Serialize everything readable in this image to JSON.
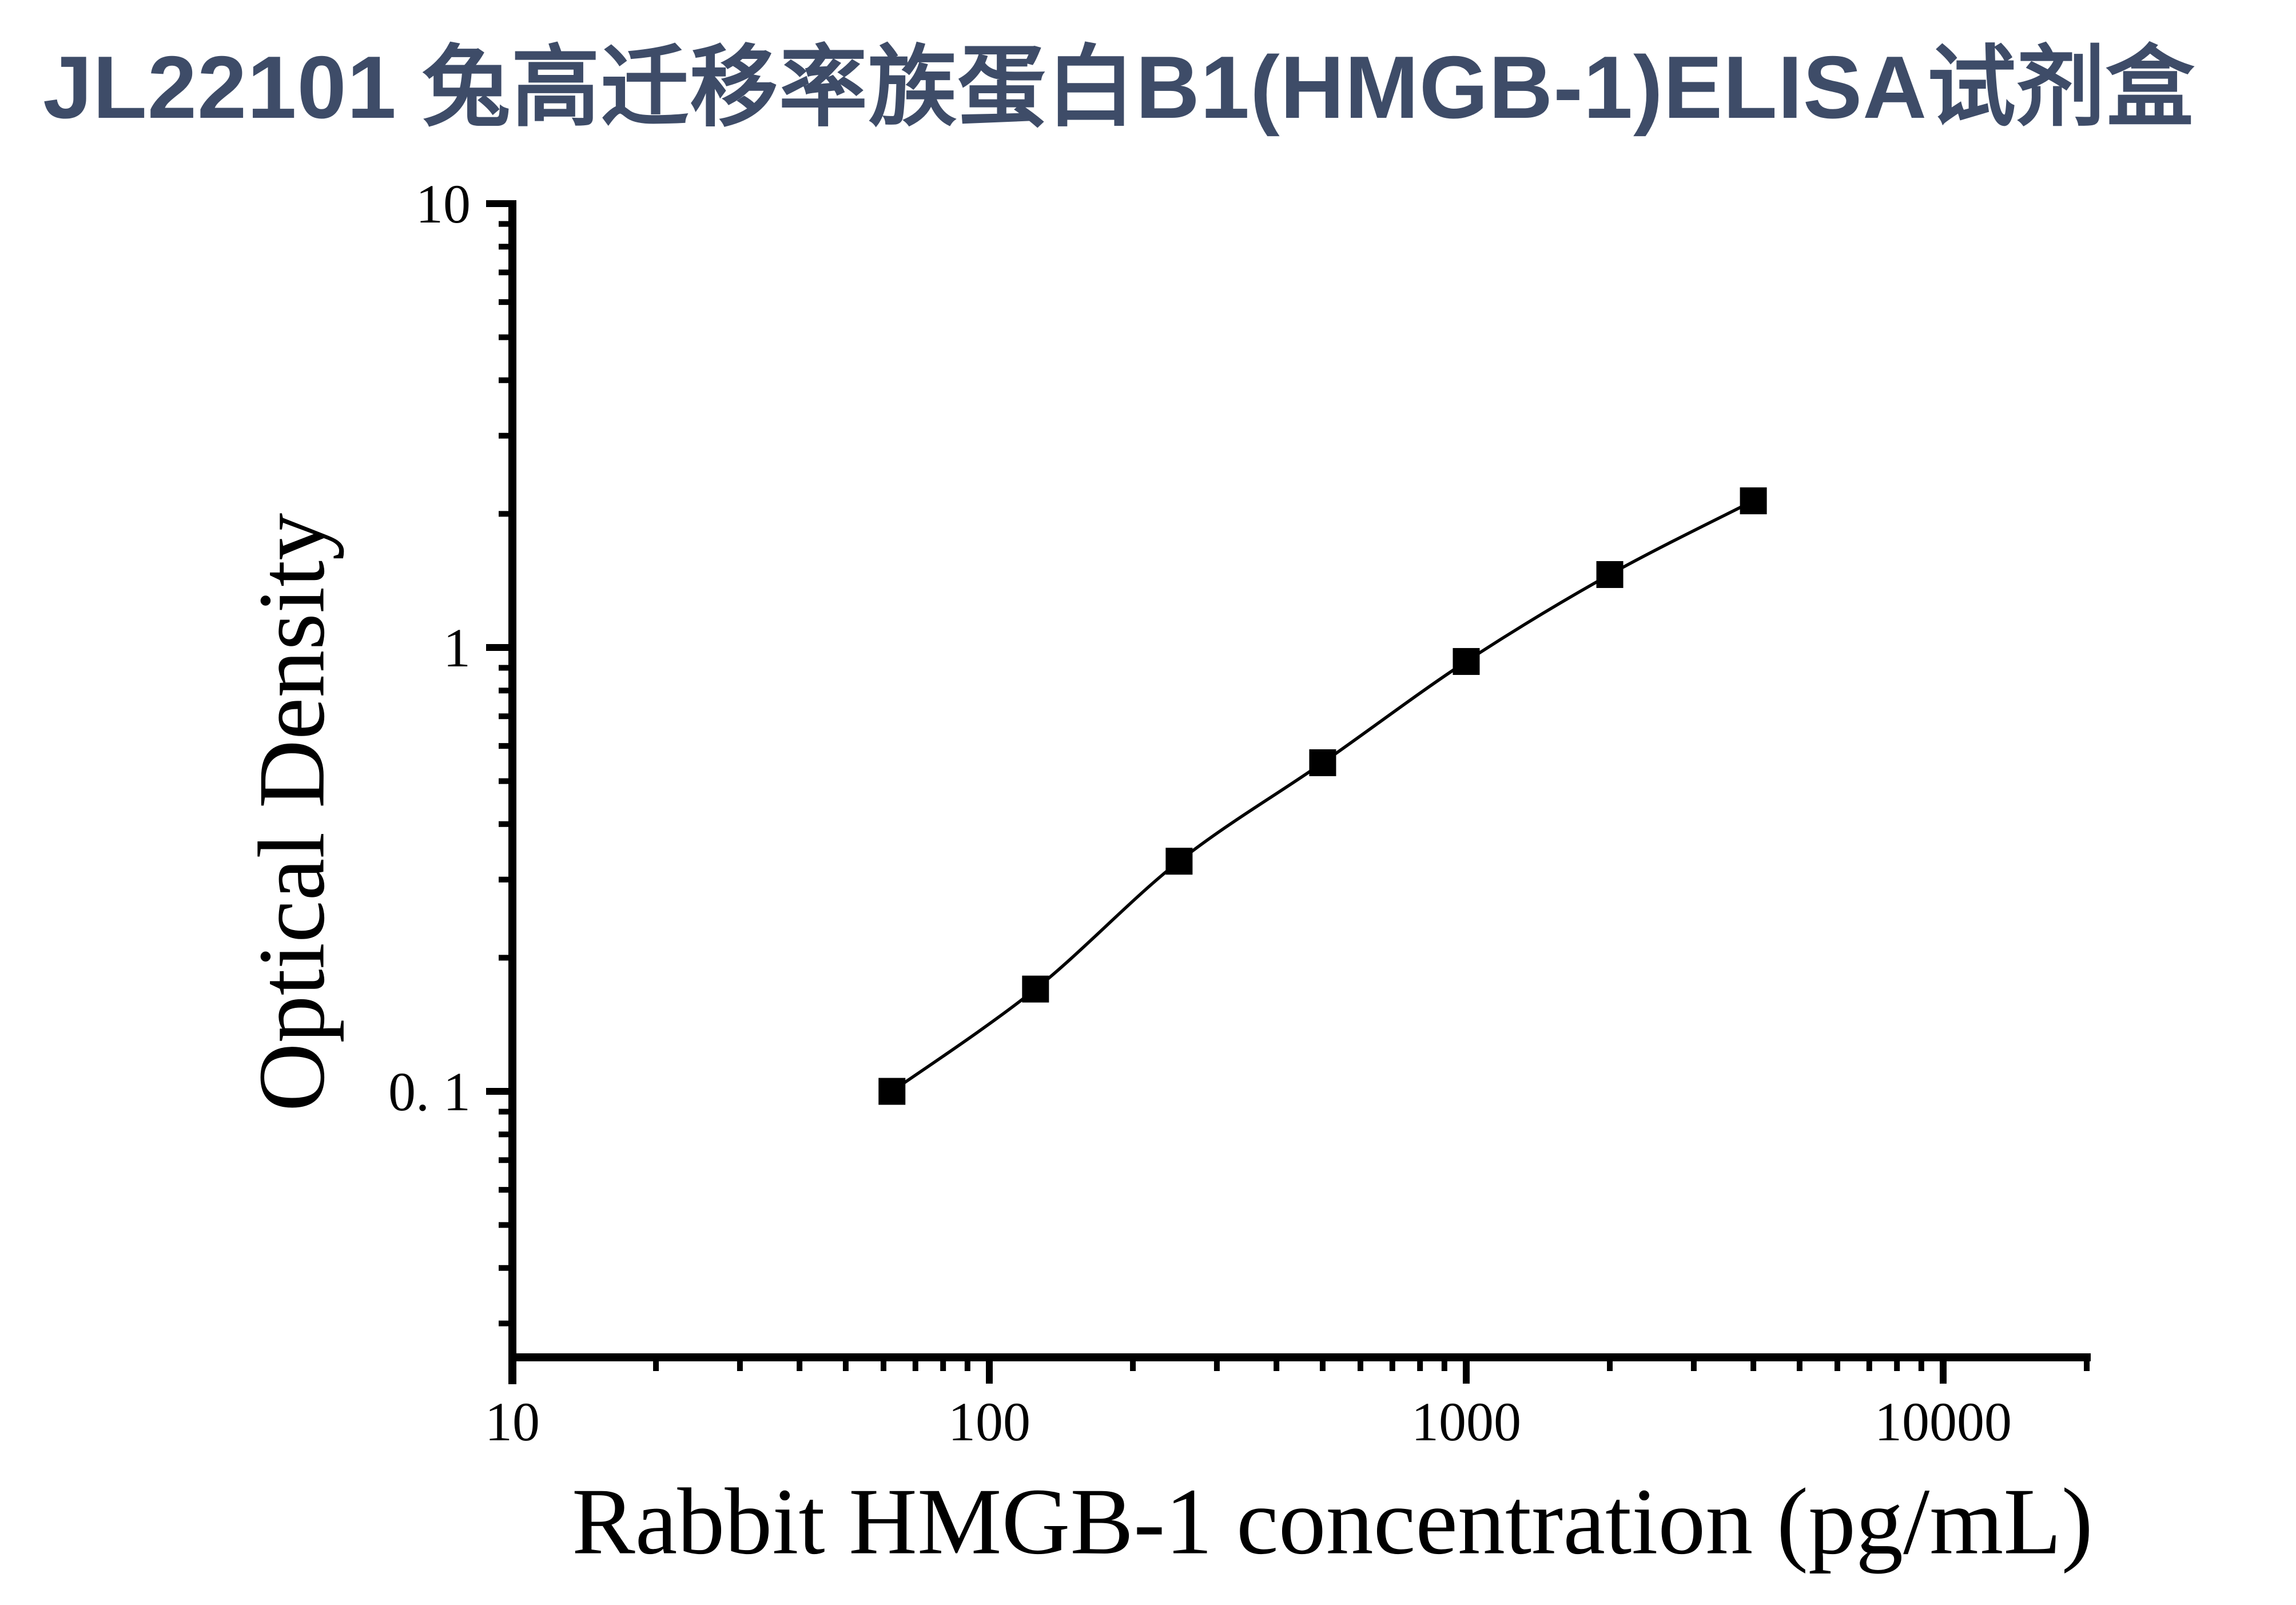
{
  "figure": {
    "title": "JL22101 兔高迁移率族蛋白B1(HMGB-1)ELISA试剂盒",
    "title_color": "#3E4C68",
    "background_color": "#FFFFFF",
    "plot_color": "#000000"
  },
  "axes": {
    "x": {
      "title": "Rabbit HMGB-1 concentration (pg/mL)",
      "scale": "log",
      "min": 10,
      "max": 20000,
      "major_tick_values": [
        10,
        100,
        1000,
        10000
      ],
      "major_tick_labels": [
        "10",
        "100",
        "1000",
        "10000"
      ]
    },
    "y": {
      "title": "Optical Density",
      "scale": "log",
      "min": 0.022,
      "max": 10,
      "major_tick_values": [
        10,
        1,
        0.1
      ],
      "major_tick_labels": [
        "10",
        "1",
        "0. 1"
      ]
    }
  },
  "chart_data": {
    "type": "line",
    "title": "JL22101 兔高迁移率族蛋白B1(HMGB-1)ELISA试剂盒",
    "xlabel": "Rabbit HMGB-1 concentration (pg/mL)",
    "ylabel": "Optical Density",
    "x": [
      62.5,
      125,
      250,
      500,
      1000,
      2000,
      4000
    ],
    "y": [
      0.1,
      0.17,
      0.33,
      0.55,
      0.93,
      1.46,
      2.14
    ],
    "x_scale": "log",
    "y_scale": "log",
    "xlim": [
      10,
      20000
    ],
    "ylim": [
      0.022,
      10
    ],
    "marker": "filled-square",
    "line_color": "#000000",
    "marker_color": "#000000",
    "grid": false,
    "legend": "none"
  }
}
